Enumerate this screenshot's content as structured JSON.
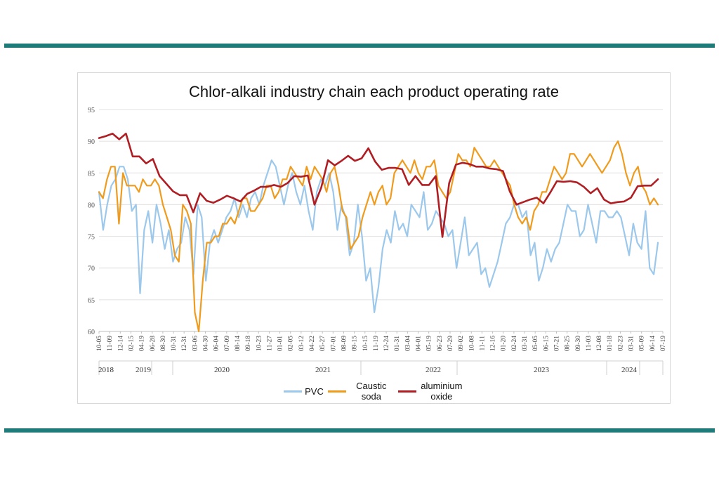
{
  "chart_data": {
    "type": "line",
    "title": "Chlor-alkali industry chain each product operating rate",
    "xlabel": "",
    "ylabel": "",
    "ylim": [
      60,
      95
    ],
    "yticks": [
      60,
      65,
      70,
      75,
      80,
      85,
      90,
      95
    ],
    "grid": "horizontal",
    "legend_position": "bottom",
    "x_ticks": [
      "10-05",
      "11-09",
      "12-14",
      "02-15",
      "04-19",
      "06-28",
      "08-30",
      "10-31",
      "12-31",
      "03-06",
      "04-30",
      "06-04",
      "07-09",
      "08-14",
      "09-18",
      "10-23",
      "11-27",
      "01-01",
      "02-05",
      "03-12",
      "04-22",
      "05-27",
      "07-01",
      "08-09",
      "09-15",
      "10-15",
      "11-19",
      "12-24",
      "01-31",
      "03-04",
      "04-01",
      "05-19",
      "06-23",
      "07-29",
      "09-02",
      "10-08",
      "11-11",
      "12-16",
      "01-20",
      "02-24",
      "03-31",
      "05-05",
      "06-15",
      "07-21",
      "08-25",
      "09-30",
      "11-03",
      "12-08",
      "01-18",
      "02-23",
      "03-31",
      "05-09",
      "06-14",
      "07-19"
    ],
    "year_labels": [
      "2018",
      "2019",
      "2020",
      "2021",
      "2022",
      "2023",
      "2024"
    ],
    "series": [
      {
        "name": "PVC",
        "color": "#9cc8ec",
        "values": [
          82,
          76,
          80,
          83,
          84,
          86,
          86,
          84,
          79,
          80,
          66,
          76,
          79,
          74,
          80,
          77,
          73,
          76,
          71,
          73,
          74,
          78,
          76,
          69,
          80,
          78,
          68,
          74,
          76,
          74,
          76,
          78,
          79,
          81,
          78,
          80,
          78,
          81,
          82,
          80,
          83,
          85,
          87,
          86,
          83,
          80,
          83,
          85,
          82,
          80,
          83,
          79,
          76,
          82,
          84,
          83,
          85,
          82,
          76,
          80,
          78,
          72,
          74,
          80,
          75,
          68,
          70,
          63,
          67,
          73,
          76,
          74,
          79,
          76,
          77,
          75,
          80,
          79,
          78,
          82,
          76,
          77,
          79,
          78,
          77,
          75,
          76,
          70,
          74,
          78,
          72,
          73,
          74,
          69,
          70,
          67,
          69,
          71,
          74,
          77,
          78,
          80,
          80,
          78,
          79,
          72,
          74,
          68,
          70,
          73,
          71,
          73,
          74,
          77,
          80,
          79,
          79,
          75,
          76,
          80,
          77,
          74,
          79,
          79,
          78,
          78,
          79,
          78,
          75,
          72,
          77,
          74,
          73,
          79,
          70,
          69,
          74
        ]
      },
      {
        "name": "Caustic soda",
        "color": "#ef9b1e",
        "values": [
          82,
          81,
          84,
          86,
          86,
          77,
          85,
          83,
          83,
          83,
          82,
          84,
          83,
          83,
          84,
          83,
          80,
          78,
          76,
          72,
          71,
          80,
          79,
          77,
          63,
          60,
          68,
          74,
          74,
          75,
          75,
          77,
          77,
          78,
          77,
          79,
          81,
          81,
          79,
          79,
          80,
          81,
          83,
          83,
          81,
          82,
          84,
          84,
          86,
          85,
          84,
          83,
          86,
          84,
          86,
          85,
          84,
          82,
          85,
          86,
          83,
          79,
          78,
          73,
          74,
          75,
          78,
          80,
          82,
          80,
          82,
          83,
          80,
          81,
          85,
          86,
          87,
          86,
          85,
          87,
          85,
          84,
          86,
          86,
          87,
          83,
          82,
          81,
          82,
          85,
          88,
          87,
          87,
          86,
          89,
          88,
          87,
          86,
          86,
          87,
          86,
          85,
          84,
          83,
          80,
          78,
          77,
          78,
          76,
          79,
          80,
          82,
          82,
          84,
          86,
          85,
          84,
          85,
          88,
          88,
          87,
          86,
          87,
          88,
          87,
          86,
          85,
          86,
          87,
          89,
          90,
          88,
          85,
          83,
          85,
          86,
          83,
          82,
          80,
          81,
          80
        ]
      },
      {
        "name": "aluminium oxide",
        "color": "#b01e23",
        "values": [
          90.5,
          90.8,
          91.2,
          90.3,
          91.2,
          87.6,
          87.6,
          86.5,
          87.2,
          84.5,
          83.3,
          82.1,
          81.5,
          81.5,
          78.8,
          81.8,
          80.6,
          80.3,
          80.8,
          81.4,
          81.0,
          80.5,
          81.7,
          82.2,
          82.8,
          82.8,
          83.1,
          82.8,
          83.4,
          84.5,
          84.4,
          84.6,
          80.0,
          82.7,
          87.0,
          86.2,
          86.9,
          87.7,
          86.9,
          87.3,
          88.9,
          86.8,
          85.5,
          85.8,
          85.8,
          85.6,
          83.1,
          84.5,
          83.1,
          83.1,
          84.5,
          74.9,
          83.4,
          86.3,
          86.6,
          86.4,
          86.0,
          86.0,
          85.7,
          85.6,
          85.3,
          82.1,
          80.0,
          80.4,
          80.8,
          81.1,
          80.2,
          81.9,
          83.7,
          83.6,
          83.7,
          83.5,
          82.8,
          81.8,
          82.6,
          80.8,
          80.2,
          80.4,
          80.5,
          81.1,
          82.9,
          83.0,
          83.0,
          84.0
        ]
      }
    ]
  }
}
